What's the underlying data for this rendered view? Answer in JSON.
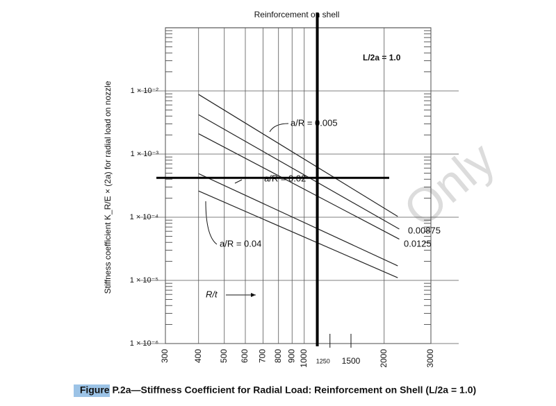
{
  "chart_data": {
    "type": "line",
    "title": "Reinforcement on shell",
    "y_label": "Stiffness coefficient K_R/E × (2a) for radial load on nozzle",
    "annotations": [
      "L/2a = 1.0",
      "R/t"
    ],
    "caption": "Figure P.2a—Stiffness Coefficient for Radial Load: Reinforcement on Shell (L/2a = 1.0)",
    "watermark": "Only",
    "x_log": true,
    "y_log": true,
    "grid": true,
    "xlim": [
      300,
      3000
    ],
    "xticks": [
      300,
      400,
      500,
      600,
      700,
      800,
      900,
      1000,
      1250,
      1500,
      2000,
      3000
    ],
    "ylim": [
      1e-06,
      0.1
    ],
    "yticks": [
      {
        "value": 1e-06,
        "label": "1 × 10⁻⁶"
      },
      {
        "value": 1e-05,
        "label": "1 × 10⁻⁵"
      },
      {
        "value": 0.0001,
        "label": "1 × 10⁻⁴"
      },
      {
        "value": 0.001,
        "label": "1 × 10⁻³"
      },
      {
        "value": 0.01,
        "label": "1 × 10⁻²"
      }
    ],
    "reference_lines": {
      "x": 1120,
      "y": 0.00042
    },
    "series": [
      {
        "name": "a/R = 0.005",
        "color": "#222222",
        "x": [
          400,
          2250
        ],
        "values": [
          0.0088,
          0.000103
        ]
      },
      {
        "name": "0.00875",
        "color": "#222222",
        "x": [
          400,
          2280
        ],
        "values": [
          0.0042,
          6.5e-05
        ]
      },
      {
        "name": "0.0125",
        "color": "#222222",
        "x": [
          400,
          2280
        ],
        "values": [
          0.0021,
          4.5e-05
        ]
      },
      {
        "name": "a/R = 0.02",
        "color": "#222222",
        "x": [
          400,
          2250
        ],
        "values": [
          0.00049,
          1.7e-05
        ]
      },
      {
        "name": "a/R = 0.04",
        "color": "#222222",
        "x": [
          400,
          2250
        ],
        "values": [
          0.00026,
          1.1e-05
        ]
      }
    ]
  }
}
